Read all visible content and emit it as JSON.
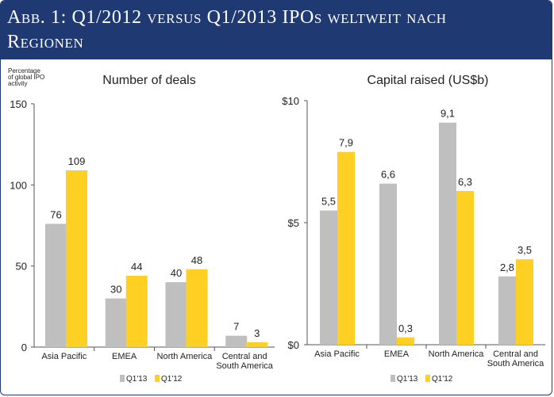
{
  "header": {
    "title_line1": "Abb. 1: Q1/2012 versus Q1/2013 IPOs weltweit nach",
    "title_line2": "Regionen"
  },
  "colors": {
    "header_bg": "#1f3a73",
    "q13": "#bfbfbf",
    "q12": "#fdd023"
  },
  "y_caption": [
    "Percentage",
    "of global IPO",
    "activity"
  ],
  "legend": {
    "q13": "Q1'13",
    "q12": "Q1'12"
  },
  "chart_data": [
    {
      "type": "bar",
      "title": "Number of deals",
      "categories": [
        [
          "Asia Pacific"
        ],
        [
          "EMEA"
        ],
        [
          "North America"
        ],
        [
          "Central and",
          "South America"
        ]
      ],
      "series": [
        {
          "name": "Q1'13",
          "values": [
            76,
            30,
            40,
            7
          ],
          "labels": [
            "76",
            "30",
            "40",
            "7"
          ]
        },
        {
          "name": "Q1'12",
          "values": [
            109,
            44,
            48,
            3
          ],
          "labels": [
            "109",
            "44",
            "48",
            "3"
          ]
        }
      ],
      "ylim": [
        0,
        150
      ],
      "yticks": [
        0,
        50,
        100,
        150
      ],
      "ytick_labels": [
        "0",
        "50",
        "100",
        "150"
      ]
    },
    {
      "type": "bar",
      "title": "Capital raised (US$b)",
      "categories": [
        [
          "Asia Pacific"
        ],
        [
          "EMEA"
        ],
        [
          "North America"
        ],
        [
          "Central and",
          "South America"
        ]
      ],
      "series": [
        {
          "name": "Q1'13",
          "values": [
            5.5,
            6.6,
            9.1,
            2.8
          ],
          "labels": [
            "5,5",
            "6,6",
            "9,1",
            "2,8"
          ]
        },
        {
          "name": "Q1'12",
          "values": [
            7.9,
            0.3,
            6.3,
            3.5
          ],
          "labels": [
            "7,9",
            "0,3",
            "6,3",
            "3,5"
          ]
        }
      ],
      "ylim": [
        0,
        10
      ],
      "yticks": [
        0,
        5,
        10
      ],
      "ytick_labels": [
        "$0",
        "$5",
        "$10"
      ]
    }
  ]
}
